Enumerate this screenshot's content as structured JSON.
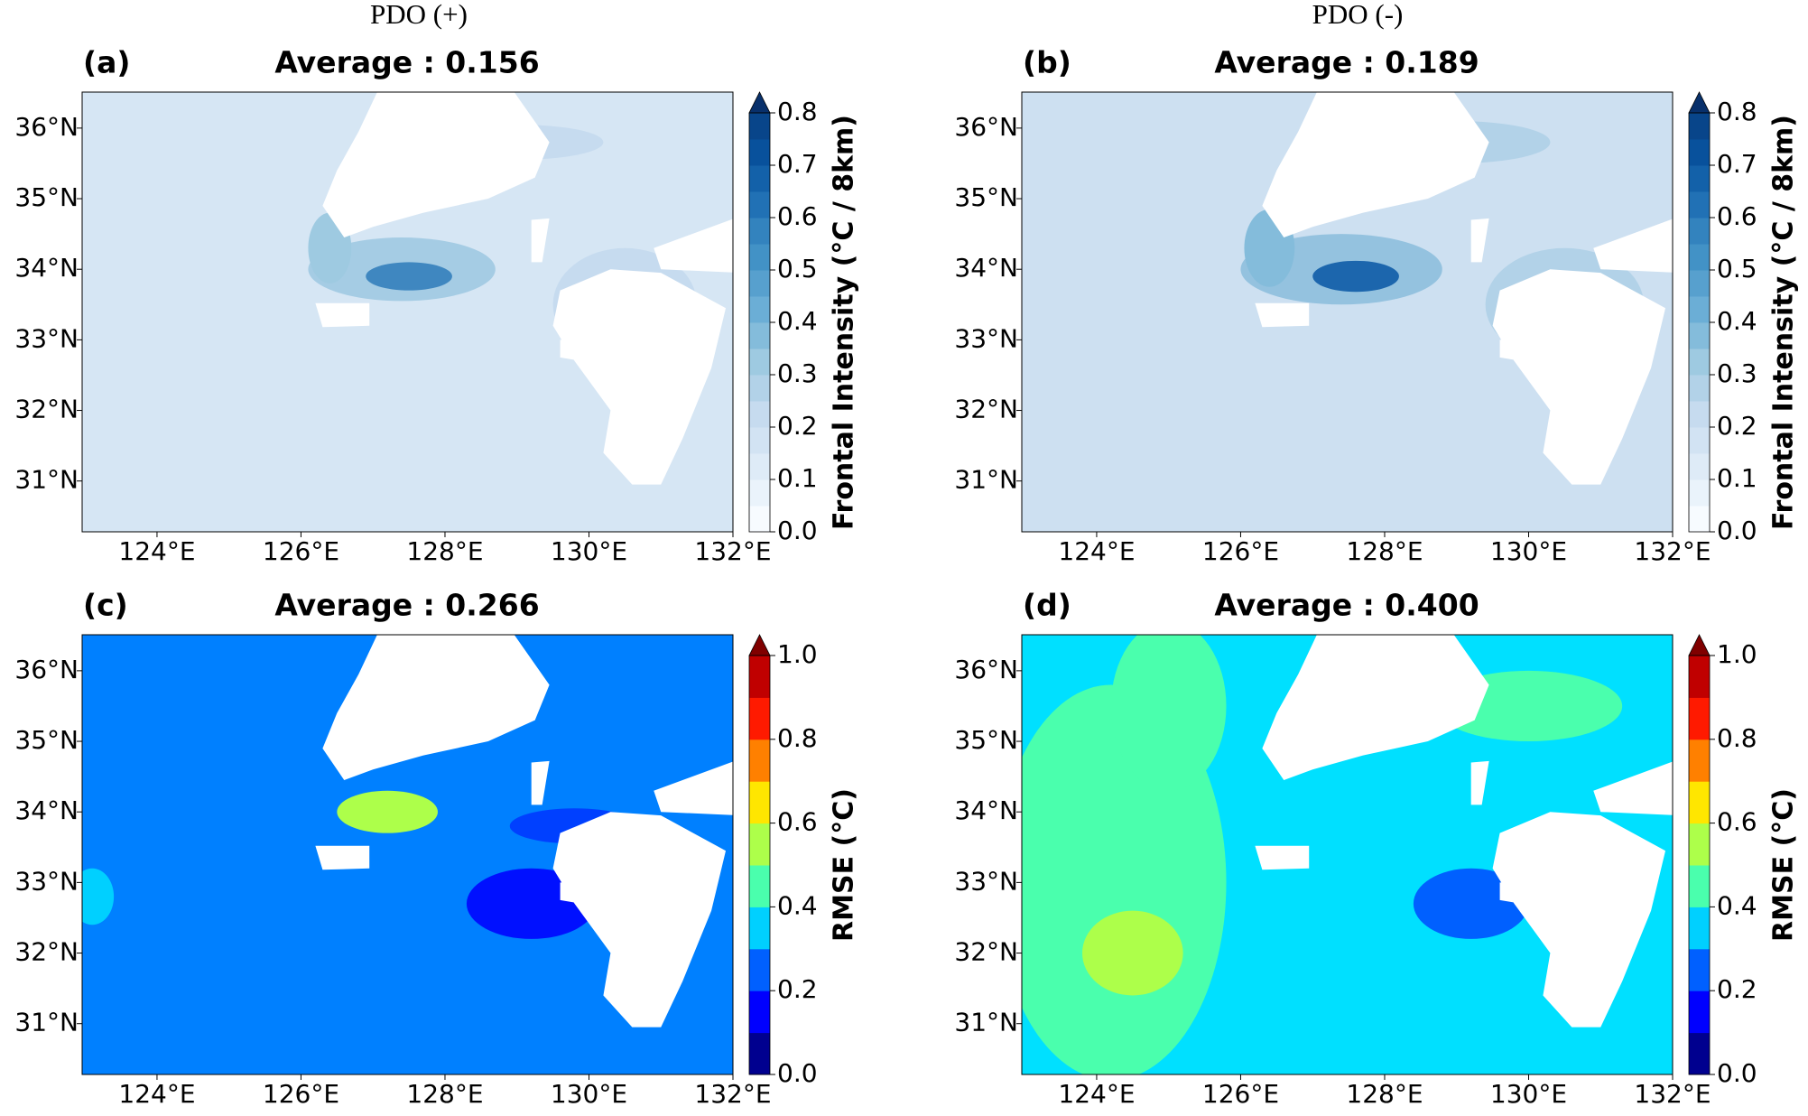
{
  "columns": [
    "PDO (+)",
    "PDO (-)"
  ],
  "chart_data": [
    {
      "type": "contour_map",
      "label": "(a)",
      "title": "Average : 0.156",
      "xlim": [
        122.96,
        132.0
      ],
      "ylim": [
        30.28,
        36.51
      ],
      "xticks": [
        {
          "value": 124,
          "label": "124°E"
        },
        {
          "value": 126,
          "label": "126°E"
        },
        {
          "value": 128,
          "label": "128°E"
        },
        {
          "value": 130,
          "label": "130°E"
        },
        {
          "value": 132,
          "label": "132°E"
        }
      ],
      "yticks": [
        {
          "value": 31,
          "label": "31°N"
        },
        {
          "value": 32,
          "label": "32°N"
        },
        {
          "value": 33,
          "label": "33°N"
        },
        {
          "value": 34,
          "label": "34°N"
        },
        {
          "value": 35,
          "label": "35°N"
        },
        {
          "value": 36,
          "label": "36°N"
        }
      ],
      "colorbar": {
        "label": "Frontal Intensity (°C / 8km)",
        "lim": [
          0,
          0.8
        ],
        "ticks": [
          {
            "value": 0,
            "label": "0.0"
          },
          0.1,
          0.2,
          0.3,
          0.4,
          0.5,
          0.6,
          0.7,
          0.8
        ],
        "colors": [
          "#f7fbff",
          "#eaf3fb",
          "#deebf7",
          "#d2e3f3",
          "#c6dbef",
          "#b2d2e8",
          "#9ecae1",
          "#84bcdb",
          "#6baed6",
          "#57a0ce",
          "#4292c6",
          "#3383be",
          "#2171b5",
          "#1361a9",
          "#08519c",
          "#08458a"
        ],
        "over_color": "#08306b"
      }
    },
    {
      "type": "contour_map",
      "label": "(b)",
      "title": "Average : 0.189",
      "xlim": [
        122.96,
        132.0
      ],
      "ylim": [
        30.28,
        36.51
      ],
      "xticks": [
        {
          "value": 124,
          "label": "124°E"
        },
        {
          "value": 126,
          "label": "126°E"
        },
        {
          "value": 128,
          "label": "128°E"
        },
        {
          "value": 130,
          "label": "130°E"
        },
        {
          "value": 132,
          "label": "132°E"
        }
      ],
      "yticks": [
        {
          "value": 31,
          "label": "31°N"
        },
        {
          "value": 32,
          "label": "32°N"
        },
        {
          "value": 33,
          "label": "33°N"
        },
        {
          "value": 34,
          "label": "34°N"
        },
        {
          "value": 35,
          "label": "35°N"
        },
        {
          "value": 36,
          "label": "36°N"
        }
      ],
      "colorbar": {
        "label": "Frontal Intensity (°C / 8km)",
        "lim": [
          0,
          0.8
        ],
        "ticks": [
          {
            "value": 0,
            "label": "0.0"
          },
          0.1,
          0.2,
          0.3,
          0.4,
          0.5,
          0.6,
          0.7,
          0.8
        ],
        "colors": [
          "#f7fbff",
          "#eaf3fb",
          "#deebf7",
          "#d2e3f3",
          "#c6dbef",
          "#b2d2e8",
          "#9ecae1",
          "#84bcdb",
          "#6baed6",
          "#57a0ce",
          "#4292c6",
          "#3383be",
          "#2171b5",
          "#1361a9",
          "#08519c",
          "#08458a"
        ],
        "over_color": "#08306b"
      }
    },
    {
      "type": "contour_map",
      "label": "(c)",
      "title": "Average : 0.266",
      "xlim": [
        122.96,
        132.0
      ],
      "ylim": [
        30.28,
        36.51
      ],
      "xticks": [
        {
          "value": 124,
          "label": "124°E"
        },
        {
          "value": 126,
          "label": "126°E"
        },
        {
          "value": 128,
          "label": "128°E"
        },
        {
          "value": 130,
          "label": "130°E"
        },
        {
          "value": 132,
          "label": "132°E"
        }
      ],
      "yticks": [
        {
          "value": 31,
          "label": "31°N"
        },
        {
          "value": 32,
          "label": "32°N"
        },
        {
          "value": 33,
          "label": "33°N"
        },
        {
          "value": 34,
          "label": "34°N"
        },
        {
          "value": 35,
          "label": "35°N"
        },
        {
          "value": 36,
          "label": "36°N"
        }
      ],
      "colorbar": {
        "label": "RMSE (°C)",
        "lim": [
          0,
          1
        ],
        "ticks": [
          {
            "value": 0,
            "label": "0.0"
          },
          0.2,
          0.4,
          0.6,
          0.8,
          {
            "value": 1,
            "label": "1.0"
          }
        ],
        "colors": [
          "#00008f",
          "#0000ff",
          "#0060ff",
          "#00d0ff",
          "#4affad",
          "#adff4a",
          "#ffe600",
          "#ff8000",
          "#ff1a00",
          "#c00000"
        ],
        "over_color": "#800000"
      }
    },
    {
      "type": "contour_map",
      "label": "(d)",
      "title": "Average : 0.400",
      "xlim": [
        122.96,
        132.0
      ],
      "ylim": [
        30.28,
        36.51
      ],
      "xticks": [
        {
          "value": 124,
          "label": "124°E"
        },
        {
          "value": 126,
          "label": "126°E"
        },
        {
          "value": 128,
          "label": "128°E"
        },
        {
          "value": 130,
          "label": "130°E"
        },
        {
          "value": 132,
          "label": "132°E"
        }
      ],
      "yticks": [
        {
          "value": 31,
          "label": "31°N"
        },
        {
          "value": 32,
          "label": "32°N"
        },
        {
          "value": 33,
          "label": "33°N"
        },
        {
          "value": 34,
          "label": "34°N"
        },
        {
          "value": 35,
          "label": "35°N"
        },
        {
          "value": 36,
          "label": "36°N"
        }
      ],
      "colorbar": {
        "label": "RMSE (°C)",
        "lim": [
          0,
          1
        ],
        "ticks": [
          {
            "value": 0,
            "label": "0.0"
          },
          0.2,
          0.4,
          0.6,
          0.8,
          {
            "value": 1,
            "label": "1.0"
          }
        ],
        "colors": [
          "#00008f",
          "#0000ff",
          "#0060ff",
          "#00d0ff",
          "#4affad",
          "#adff4a",
          "#ffe600",
          "#ff8000",
          "#ff1a00",
          "#c00000"
        ],
        "over_color": "#800000"
      }
    }
  ]
}
